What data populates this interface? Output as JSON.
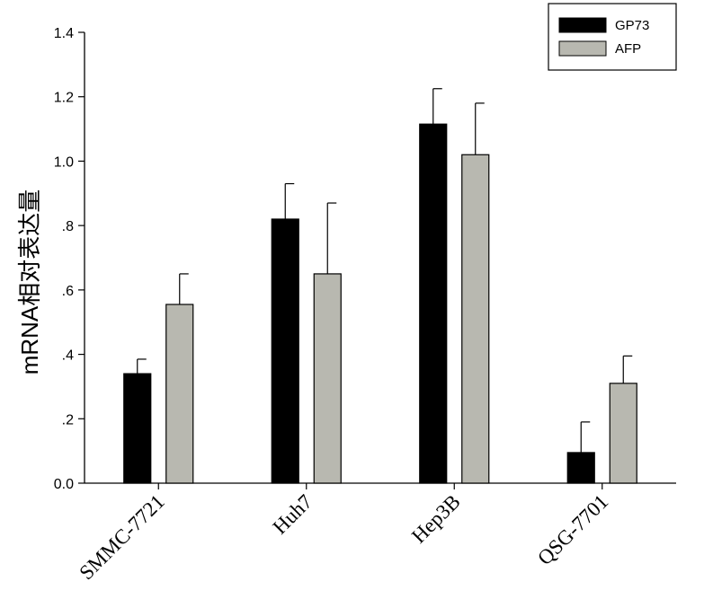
{
  "chart_data": {
    "type": "bar",
    "title": "",
    "xlabel": "",
    "ylabel": "mRNA相对表达量",
    "ylim": [
      0,
      1.4
    ],
    "yticks": [
      {
        "value": 0.0,
        "label": "0.0"
      },
      {
        "value": 0.2,
        "label": ".2"
      },
      {
        "value": 0.4,
        "label": ".4"
      },
      {
        "value": 0.6,
        "label": ".6"
      },
      {
        "value": 0.8,
        "label": ".8"
      },
      {
        "value": 1.0,
        "label": "1.0"
      },
      {
        "value": 1.2,
        "label": "1.2"
      },
      {
        "value": 1.4,
        "label": "1.4"
      }
    ],
    "categories": [
      "SMMC-7721",
      "Huh7",
      "Hep3B",
      "QSG-7701"
    ],
    "series": [
      {
        "name": "GP73",
        "color": "#000000",
        "values": [
          0.34,
          0.82,
          1.115,
          0.095
        ],
        "errors": [
          0.045,
          0.11,
          0.11,
          0.095
        ]
      },
      {
        "name": "AFP",
        "color": "#b8b8b0",
        "values": [
          0.555,
          0.65,
          1.02,
          0.31
        ],
        "errors": [
          0.095,
          0.22,
          0.16,
          0.085
        ]
      }
    ],
    "legend_position": "top-right",
    "grid": false,
    "error_bars": true
  }
}
